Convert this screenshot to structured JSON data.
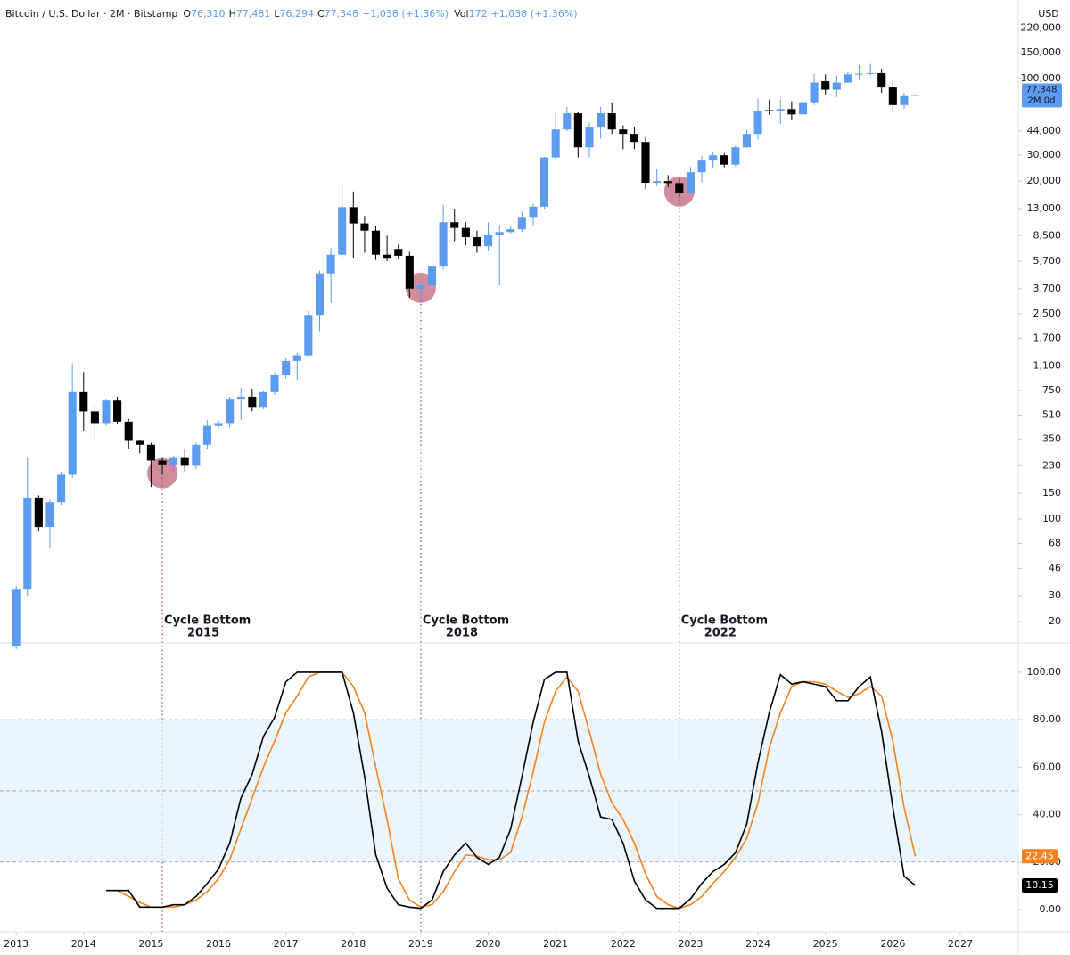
{
  "header": {
    "symbol": "Bitcoin / U.S. Dollar · 2M · Bitstamp",
    "fields": [
      {
        "key": "O",
        "value": "76,310"
      },
      {
        "key": "H",
        "value": "77,481"
      },
      {
        "key": "L",
        "value": "76,294"
      },
      {
        "key": "C",
        "value": "77,348"
      }
    ],
    "change": "+1,038 (+1.36%)",
    "volume_key": "Vol",
    "volume": "172",
    "volume_change": "+1,038 (+1.36%)"
  },
  "chart_data": [
    {
      "type": "candlestick",
      "currency": "USD",
      "log": true,
      "grid": false,
      "up_color": "#5b9cf0",
      "down_color": "#000000",
      "xlim": [
        2012.76,
        2027.86
      ],
      "ylim": [
        14.5,
        343000
      ],
      "yticks": [
        20,
        30,
        46,
        68,
        100,
        150,
        230,
        350,
        510,
        750,
        {
          "value": 1100,
          "label": "1,100"
        },
        {
          "value": 1700,
          "label": "1,700"
        },
        {
          "value": 2500,
          "label": "2,500"
        },
        {
          "value": 3700,
          "label": "3,700"
        },
        {
          "value": 5700,
          "label": "5,700"
        },
        {
          "value": 8500,
          "label": "8,500"
        },
        {
          "value": 13000,
          "label": "13,000"
        },
        {
          "value": 20000,
          "label": "20,000"
        },
        {
          "value": 30000,
          "label": "30,000"
        },
        {
          "value": 44000,
          "label": "44,000"
        },
        {
          "value": 100000,
          "label": "100,000"
        },
        {
          "value": 150000,
          "label": "150,000"
        },
        {
          "value": 220000,
          "label": "220,000"
        }
      ],
      "last_price": {
        "value": 77348,
        "label": "77,348"
      },
      "countdown": "2M 0d",
      "x": [
        2013,
        2013.167,
        2013.333,
        2013.5,
        2013.667,
        2013.833,
        2014,
        2014.167,
        2014.333,
        2014.5,
        2014.667,
        2014.833,
        2015,
        2015.167,
        2015.333,
        2015.5,
        2015.667,
        2015.833,
        2016,
        2016.167,
        2016.333,
        2016.5,
        2016.667,
        2016.833,
        2017,
        2017.167,
        2017.333,
        2017.5,
        2017.667,
        2017.833,
        2018,
        2018.167,
        2018.333,
        2018.5,
        2018.667,
        2018.833,
        2019,
        2019.167,
        2019.333,
        2019.5,
        2019.667,
        2019.833,
        2020,
        2020.167,
        2020.333,
        2020.5,
        2020.667,
        2020.833,
        2021,
        2021.167,
        2021.333,
        2021.5,
        2021.667,
        2021.833,
        2022,
        2022.167,
        2022.333,
        2022.5,
        2022.667,
        2022.833,
        2023,
        2023.167,
        2023.333,
        2023.5,
        2023.667,
        2023.833,
        2024,
        2024.167,
        2024.333,
        2024.5,
        2024.667,
        2024.833,
        2025,
        2025.167,
        2025.333,
        2025.5,
        2025.667,
        2025.833,
        2026,
        2026.167,
        2026.333
      ],
      "open": [
        13.5,
        33,
        140,
        88,
        130,
        200,
        730,
        540,
        450,
        640,
        460,
        340,
        320,
        250,
        235,
        260,
        230,
        320,
        430,
        450,
        650,
        680,
        580,
        730,
        960,
        1190,
        1300,
        2450,
        4700,
        6300,
        13300,
        10300,
        9200,
        6300,
        6900,
        6200,
        3700,
        3900,
        5300,
        10500,
        9600,
        8300,
        7200,
        8600,
        9000,
        9400,
        11400,
        13400,
        29000,
        45000,
        58000,
        34000,
        47000,
        58000,
        45000,
        42000,
        37000,
        19500,
        20000,
        19400,
        16500,
        23000,
        28000,
        30000,
        25900,
        34000,
        42000,
        61000,
        60000,
        62000,
        57000,
        69000,
        96000,
        84000,
        94000,
        107000,
        108000,
        109000,
        87000,
        66000,
        76310
      ],
      "high": [
        35,
        260,
        145,
        135,
        210,
        1150,
        1000,
        600,
        650,
        680,
        480,
        345,
        330,
        260,
        270,
        300,
        330,
        470,
        470,
        680,
        780,
        770,
        750,
        1000,
        1250,
        1350,
        2600,
        4900,
        7000,
        19500,
        17000,
        11600,
        9900,
        8500,
        7400,
        6600,
        4200,
        5800,
        13800,
        13000,
        10500,
        9200,
        10500,
        10000,
        10000,
        12400,
        14000,
        29300,
        58000,
        64000,
        59000,
        50000,
        64000,
        69000,
        48000,
        47000,
        40000,
        24000,
        22000,
        21000,
        25000,
        29500,
        31800,
        31000,
        35000,
        44700,
        73000,
        72000,
        72000,
        70000,
        72000,
        108000,
        107000,
        105000,
        111000,
        124000,
        126000,
        117000,
        98000,
        80000,
        77481
      ],
      "low": [
        13,
        30,
        82,
        63,
        125,
        190,
        400,
        340,
        430,
        440,
        300,
        280,
        165,
        200,
        210,
        210,
        220,
        300,
        410,
        420,
        470,
        540,
        560,
        700,
        900,
        880,
        1280,
        1900,
        2950,
        5800,
        6000,
        6500,
        5800,
        5700,
        5900,
        3200,
        3100,
        3800,
        5000,
        7800,
        7300,
        6500,
        6700,
        3900,
        8800,
        9000,
        10000,
        13000,
        28000,
        44000,
        29000,
        29000,
        39000,
        42000,
        33000,
        33000,
        17600,
        18500,
        18200,
        15500,
        16400,
        19600,
        24800,
        24900,
        25000,
        34000,
        38500,
        56500,
        49000,
        52000,
        52000,
        66000,
        78000,
        75000,
        93000,
        98000,
        105000,
        80000,
        60000,
        62000,
        76294
      ],
      "close": [
        33,
        140,
        88,
        130,
        200,
        730,
        540,
        450,
        640,
        460,
        340,
        320,
        250,
        235,
        260,
        230,
        320,
        430,
        450,
        650,
        680,
        580,
        730,
        960,
        1190,
        1300,
        2450,
        4700,
        6300,
        13300,
        10300,
        9200,
        6300,
        6000,
        6200,
        3700,
        3900,
        5300,
        10500,
        9600,
        8300,
        7200,
        8600,
        9000,
        9400,
        11400,
        13400,
        29000,
        45000,
        58000,
        34000,
        47000,
        58000,
        45000,
        42000,
        37000,
        19500,
        20000,
        19400,
        16500,
        23000,
        28000,
        30000,
        25900,
        34000,
        42000,
        60000,
        60000,
        62000,
        57000,
        69000,
        94000,
        84000,
        94000,
        107000,
        108000,
        109000,
        87000,
        66000,
        76000,
        77348
      ],
      "annotation_color": "#b0405a",
      "annotations": [
        {
          "label": "Cycle Bottom",
          "year": "2015",
          "x": 2015.167,
          "y": 205
        },
        {
          "label": "Cycle Bottom",
          "year": "2018",
          "x": 2019,
          "y": 3750
        },
        {
          "label": "Cycle Bottom",
          "year": "2022",
          "x": 2022.833,
          "y": 17000
        }
      ]
    },
    {
      "type": "line",
      "xlim": [
        2012.76,
        2027.86
      ],
      "ylim": [
        -9.4,
        112
      ],
      "xticks": [
        2013,
        2014,
        2015,
        2016,
        2017,
        2018,
        2019,
        2020,
        2021,
        2022,
        2023,
        2024,
        2025,
        2026,
        2027
      ],
      "yticks": [
        {
          "value": 0,
          "label": "0.00"
        },
        {
          "value": 20,
          "label": "20.00"
        },
        {
          "value": 40,
          "label": "40.00"
        },
        {
          "value": 60,
          "label": "60.00"
        },
        {
          "value": 80,
          "label": "80.00"
        },
        {
          "value": 100,
          "label": "100.00"
        }
      ],
      "band": [
        20,
        80
      ],
      "midline": 50,
      "band_color": "#e3f2fd",
      "x": [
        2014.333,
        2014.5,
        2014.667,
        2014.833,
        2015,
        2015.167,
        2015.333,
        2015.5,
        2015.667,
        2015.833,
        2016,
        2016.167,
        2016.333,
        2016.5,
        2016.667,
        2016.833,
        2017,
        2017.167,
        2017.333,
        2017.5,
        2017.667,
        2017.833,
        2018,
        2018.167,
        2018.333,
        2018.5,
        2018.667,
        2018.833,
        2019,
        2019.167,
        2019.333,
        2019.5,
        2019.667,
        2019.833,
        2020,
        2020.167,
        2020.333,
        2020.5,
        2020.667,
        2020.833,
        2021,
        2021.167,
        2021.333,
        2021.5,
        2021.667,
        2021.833,
        2022,
        2022.167,
        2022.333,
        2022.5,
        2022.667,
        2022.833,
        2023,
        2023.167,
        2023.333,
        2023.5,
        2023.667,
        2023.833,
        2024,
        2024.167,
        2024.333,
        2024.5,
        2024.667,
        2024.833,
        2025,
        2025.167,
        2025.333,
        2025.5,
        2025.667,
        2025.833,
        2026,
        2026.167,
        2026.333
      ],
      "series": [
        {
          "color": "#000000",
          "values": [
            8,
            8,
            8,
            1,
            1,
            1,
            2,
            2,
            5.5,
            11,
            17,
            28,
            47,
            57,
            73,
            81,
            96,
            100,
            100,
            100,
            100,
            100,
            83,
            56,
            23,
            9,
            2,
            1,
            0.5,
            4,
            16,
            23,
            28,
            22,
            19,
            22,
            34,
            56,
            79,
            97,
            100,
            100,
            71,
            56,
            39,
            38,
            28,
            12,
            4,
            0.5,
            0.5,
            0.5,
            4.5,
            11,
            16,
            19,
            24,
            36,
            62,
            83,
            99,
            95,
            96,
            95,
            94,
            88,
            88,
            94,
            98,
            75,
            43,
            14,
            10.15
          ]
        },
        {
          "color": "#f5821f",
          "values": [
            8,
            8,
            5.5,
            3,
            1,
            1,
            1,
            2,
            4,
            7.5,
            13,
            21,
            34,
            47,
            60,
            71,
            83,
            90,
            98,
            100,
            100,
            100,
            94,
            83,
            60,
            38,
            13,
            4,
            1,
            2,
            7.5,
            16,
            23,
            22.5,
            21,
            21,
            24,
            39,
            58,
            79,
            92,
            98,
            92,
            75,
            57,
            45,
            38,
            28,
            15,
            5.5,
            2,
            0.5,
            2,
            5.5,
            11,
            16,
            22,
            30,
            45,
            68,
            83,
            94,
            96,
            96,
            95,
            92,
            89.5,
            91,
            94,
            90,
            71,
            43,
            22.45
          ]
        }
      ]
    }
  ]
}
